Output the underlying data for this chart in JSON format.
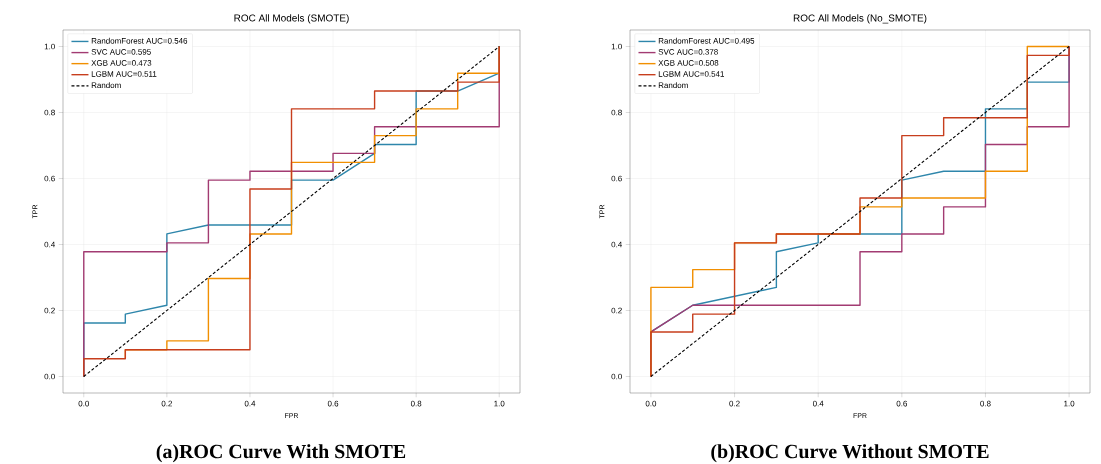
{
  "chart_data": [
    {
      "type": "line",
      "title": "ROC All Models (SMOTE)",
      "xlabel": "FPR",
      "ylabel": "TPR",
      "annotations": [
        "(a)ROC Curve With SMOTE"
      ],
      "xlim": [
        -0.05,
        1.05
      ],
      "ylim": [
        -0.05,
        1.05
      ],
      "xticks": [
        {
          "value": 0,
          "label": "0.0"
        },
        {
          "value": 0.2,
          "label": "0.2"
        },
        {
          "value": 0.4,
          "label": "0.4"
        },
        {
          "value": 0.6,
          "label": "0.6"
        },
        {
          "value": 0.8,
          "label": "0.8"
        },
        {
          "value": 1,
          "label": "1.0"
        }
      ],
      "yticks": [
        {
          "value": 0,
          "label": "0.0"
        },
        {
          "value": 0.2,
          "label": "0.2"
        },
        {
          "value": 0.4,
          "label": "0.4"
        },
        {
          "value": 0.6,
          "label": "0.6"
        },
        {
          "value": 0.8,
          "label": "0.8"
        },
        {
          "value": 1,
          "label": "1.0"
        }
      ],
      "grid": true,
      "legend": "top left",
      "marker": "none",
      "series": [
        {
          "name": "RandomForest AUC=0.546",
          "color": "#2e86ab",
          "x": [
            0,
            0,
            0.1,
            0.1,
            0.2,
            0.2,
            0.3,
            0.5,
            0.5,
            0.6,
            0.7,
            0.7,
            0.8,
            0.8,
            0.9,
            1.0,
            1.0
          ],
          "values": [
            0,
            0.162,
            0.162,
            0.189,
            0.216,
            0.432,
            0.459,
            0.459,
            0.595,
            0.595,
            0.676,
            0.703,
            0.703,
            0.865,
            0.865,
            0.919,
            1.0
          ]
        },
        {
          "name": "SVC AUC=0.595",
          "color": "#a23b72",
          "x": [
            0,
            0,
            0.2,
            0.2,
            0.3,
            0.3,
            0.4,
            0.4,
            0.6,
            0.6,
            0.7,
            0.7,
            1.0,
            1.0
          ],
          "values": [
            0,
            0.378,
            0.378,
            0.405,
            0.405,
            0.595,
            0.595,
            0.622,
            0.622,
            0.676,
            0.676,
            0.757,
            0.757,
            1.0
          ]
        },
        {
          "name": "XGB AUC=0.473",
          "color": "#f18f01",
          "x": [
            0.1,
            0.1,
            0.2,
            0.2,
            0.3,
            0.3,
            0.4,
            0.4,
            0.5,
            0.5,
            0.7,
            0.7,
            0.8,
            0.8,
            0.9,
            0.9,
            1.0,
            1.0
          ],
          "values": [
            0.054,
            0.081,
            0.081,
            0.108,
            0.108,
            0.297,
            0.297,
            0.432,
            0.432,
            0.649,
            0.649,
            0.73,
            0.73,
            0.811,
            0.811,
            0.919,
            0.919,
            1.0
          ]
        },
        {
          "name": "LGBM AUC=0.511",
          "color": "#c73e1d",
          "x": [
            0,
            0,
            0.1,
            0.1,
            0.4,
            0.4,
            0.5,
            0.5,
            0.7,
            0.7,
            0.9,
            0.9,
            1.0,
            1.0
          ],
          "values": [
            0,
            0.054,
            0.054,
            0.081,
            0.081,
            0.568,
            0.568,
            0.811,
            0.811,
            0.865,
            0.865,
            0.892,
            0.892,
            1.0
          ]
        },
        {
          "name": "Random",
          "color": "#000000",
          "line_style": "dashed",
          "x": [
            0,
            1
          ],
          "values": [
            0,
            1
          ]
        }
      ]
    },
    {
      "type": "line",
      "title": "ROC All Models (No_SMOTE)",
      "xlabel": "FPR",
      "ylabel": "TPR",
      "annotations": [
        "(b)ROC Curve Without SMOTE"
      ],
      "xlim": [
        -0.05,
        1.05
      ],
      "ylim": [
        -0.05,
        1.05
      ],
      "xticks": [
        {
          "value": 0,
          "label": "0.0"
        },
        {
          "value": 0.2,
          "label": "0.2"
        },
        {
          "value": 0.4,
          "label": "0.4"
        },
        {
          "value": 0.6,
          "label": "0.6"
        },
        {
          "value": 0.8,
          "label": "0.8"
        },
        {
          "value": 1,
          "label": "1.0"
        }
      ],
      "yticks": [
        {
          "value": 0,
          "label": "0.0"
        },
        {
          "value": 0.2,
          "label": "0.2"
        },
        {
          "value": 0.4,
          "label": "0.4"
        },
        {
          "value": 0.6,
          "label": "0.6"
        },
        {
          "value": 0.8,
          "label": "0.8"
        },
        {
          "value": 1,
          "label": "1.0"
        }
      ],
      "grid": true,
      "legend": "top left",
      "marker": "none",
      "series": [
        {
          "name": "RandomForest AUC=0.495",
          "color": "#2e86ab",
          "x": [
            0,
            0,
            0.1,
            0.3,
            0.3,
            0.4,
            0.4,
            0.6,
            0.6,
            0.7,
            0.8,
            0.8,
            0.9,
            0.9,
            1.0,
            1.0
          ],
          "values": [
            0,
            0.135,
            0.216,
            0.27,
            0.378,
            0.405,
            0.432,
            0.432,
            0.595,
            0.622,
            0.622,
            0.811,
            0.811,
            0.892,
            0.892,
            1.0
          ]
        },
        {
          "name": "SVC AUC=0.378",
          "color": "#a23b72",
          "x": [
            0,
            0,
            0.1,
            0.5,
            0.5,
            0.6,
            0.6,
            0.7,
            0.7,
            0.8,
            0.8,
            0.9,
            0.9,
            1.0,
            1.0
          ],
          "values": [
            0,
            0.135,
            0.216,
            0.216,
            0.378,
            0.378,
            0.432,
            0.432,
            0.514,
            0.514,
            0.703,
            0.703,
            0.757,
            0.757,
            1.0
          ]
        },
        {
          "name": "XGB AUC=0.508",
          "color": "#f18f01",
          "x": [
            0,
            0,
            0.1,
            0.1,
            0.2,
            0.2,
            0.3,
            0.3,
            0.5,
            0.5,
            0.6,
            0.6,
            0.8,
            0.8,
            0.9,
            0.9,
            1.0
          ],
          "values": [
            0,
            0.27,
            0.27,
            0.324,
            0.324,
            0.405,
            0.405,
            0.432,
            0.432,
            0.514,
            0.514,
            0.541,
            0.541,
            0.622,
            0.622,
            1.0,
            1.0
          ]
        },
        {
          "name": "LGBM AUC=0.541",
          "color": "#c73e1d",
          "x": [
            0,
            0,
            0.1,
            0.1,
            0.2,
            0.2,
            0.3,
            0.3,
            0.5,
            0.5,
            0.6,
            0.6,
            0.7,
            0.7,
            0.9,
            0.9,
            1.0,
            1.0
          ],
          "values": [
            0,
            0.135,
            0.135,
            0.189,
            0.189,
            0.405,
            0.405,
            0.432,
            0.432,
            0.541,
            0.541,
            0.73,
            0.73,
            0.784,
            0.784,
            0.973,
            0.973,
            1.0
          ]
        },
        {
          "name": "Random",
          "color": "#000000",
          "line_style": "dashed",
          "x": [
            0,
            1
          ],
          "values": [
            0,
            1
          ]
        }
      ]
    }
  ]
}
